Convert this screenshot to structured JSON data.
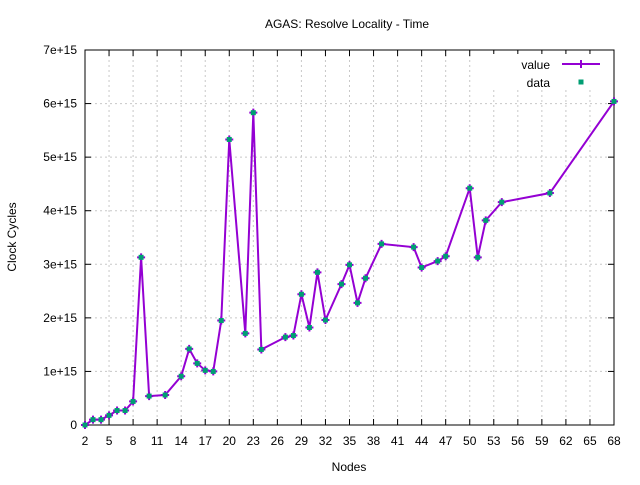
{
  "chart_data": {
    "type": "line",
    "title": "AGAS: Resolve Locality - Time",
    "xlabel": "Nodes",
    "ylabel": "Clock Cycles",
    "xlim": [
      2,
      68
    ],
    "ylim": [
      0,
      7000000000000000.0
    ],
    "xticks": [
      2,
      5,
      8,
      11,
      14,
      17,
      20,
      23,
      26,
      29,
      32,
      35,
      38,
      41,
      44,
      47,
      50,
      53,
      56,
      59,
      62,
      65,
      68
    ],
    "yticks": [
      0,
      1000000000000000.0,
      2000000000000000.0,
      3000000000000000.0,
      4000000000000000.0,
      5000000000000000.0,
      6000000000000000.0,
      7000000000000000.0
    ],
    "ytick_labels": [
      "0",
      "1e+15",
      "2e+15",
      "3e+15",
      "4e+15",
      "5e+15",
      "6e+15",
      "7e+15"
    ],
    "grid": true,
    "legend_position": "top-right",
    "series": [
      {
        "name": "value",
        "style": "linespoints",
        "color": "#9400d3"
      },
      {
        "name": "data",
        "style": "points",
        "color": "#009e73"
      }
    ],
    "x": [
      2,
      3,
      4,
      5,
      6,
      7,
      8,
      9,
      10,
      12,
      14,
      15,
      16,
      17,
      18,
      19,
      20,
      22,
      23,
      24,
      27,
      28,
      29,
      30,
      31,
      32,
      34,
      35,
      36,
      37,
      39,
      43,
      44,
      46,
      47,
      50,
      51,
      52,
      54,
      60,
      68
    ],
    "y": [
      0,
      100000000000000.0,
      100000000000000.0,
      180000000000000.0,
      270000000000000.0,
      270000000000000.0,
      440000000000000.0,
      3130000000000000.0,
      540000000000000.0,
      560000000000000.0,
      910000000000000.0,
      1420000000000000.0,
      1150000000000000.0,
      1020000000000000.0,
      1000000000000000.0,
      1950000000000000.0,
      5330000000000000.0,
      1710000000000000.0,
      5830000000000000.0,
      1410000000000000.0,
      1640000000000000.0,
      1670000000000000.0,
      2440000000000000.0,
      1820000000000000.0,
      2850000000000000.0,
      1960000000000000.0,
      2630000000000000.0,
      2990000000000000.0,
      2280000000000000.0,
      2740000000000000.0,
      3380000000000000.0,
      3320000000000000.0,
      2940000000000000.0,
      3060000000000000.0,
      3150000000000000.0,
      4420000000000000.0,
      3130000000000000.0,
      3820000000000000.0,
      4160000000000000.0,
      4330000000000000.0,
      6040000000000000.0
    ]
  }
}
